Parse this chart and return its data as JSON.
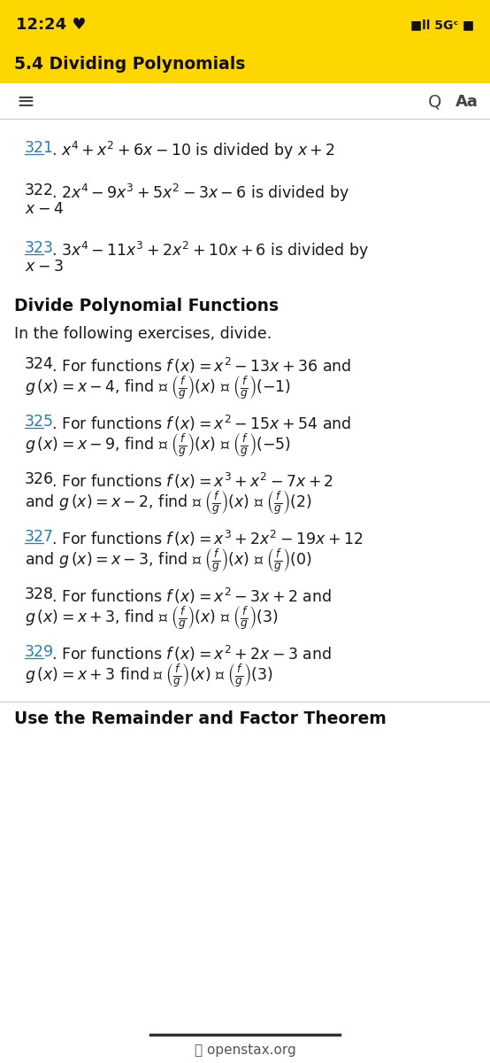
{
  "figsize": [
    5.54,
    12.0
  ],
  "dpi": 100,
  "yellow_bg": "#FFD700",
  "white_bg": "#FFFFFF",
  "text_color": "#1A1A1A",
  "link_color": "#2B7BB9",
  "separator_color": "#CCCCCC",
  "bold_header_color": "#111111",
  "status_time": "12:24 ♥",
  "status_signal": "■ll 5Gᶜ ■",
  "page_title": "5.4 Dividing Polynomials",
  "section1_header": "Divide Polynomial Functions",
  "section1_intro": "In the following exercises, divide.",
  "section2_header": "Use the Remainder and Factor Theorem",
  "footer": "openstax.org",
  "problems_321_323": [
    {
      "num": "321",
      "linked": true,
      "l1": ". $x^4 + x^2 + 6x - 10$ is divided by $x + 2$",
      "l2": null
    },
    {
      "num": "322",
      "linked": false,
      "l1": ". $2x^4 - 9x^3 + 5x^2 - 3x - 6$ is divided by",
      "l2": "$x - 4$"
    },
    {
      "num": "323",
      "linked": true,
      "l1": ". $3x^4 - 11x^3 + 2x^2 + 10x + 6$ is divided by",
      "l2": "$x - 3$"
    }
  ],
  "problems_324_329": [
    {
      "num": "324",
      "linked": false,
      "l1": ". For functions $f\\,(x) = x^2 - 13x + 36$ and",
      "l2": "$g\\,(x) = x - 4$, find Ⓐ $\\left(\\frac{f}{g}\\right)(x)$ Ⓑ $\\left(\\frac{f}{g}\\right)(-1)$"
    },
    {
      "num": "325",
      "linked": true,
      "l1": ". For functions $f\\,(x) = x^2 - 15x + 54$ and",
      "l2": "$g\\,(x) = x - 9$, find Ⓐ $\\left(\\frac{f}{g}\\right)(x)$ Ⓑ $\\left(\\frac{f}{g}\\right)(-5)$"
    },
    {
      "num": "326",
      "linked": false,
      "l1": ". For functions $f\\,(x) = x^3 + x^2 - 7x + 2$",
      "l2": "and $g\\,(x) = x - 2$, find Ⓐ $\\left(\\frac{f}{g}\\right)(x)$ Ⓑ $\\left(\\frac{f}{g}\\right)(2)$"
    },
    {
      "num": "327",
      "linked": true,
      "l1": ". For functions $f\\,(x) = x^3 + 2x^2 - 19x + 12$",
      "l2": "and $g\\,(x) = x - 3$, find Ⓐ $\\left(\\frac{f}{g}\\right)(x)$ Ⓑ $\\left(\\frac{f}{g}\\right)(0)$"
    },
    {
      "num": "328",
      "linked": false,
      "l1": ". For functions $f\\,(x) = x^2 - 3x + 2$ and",
      "l2": "$g\\,(x) = x + 3$, find Ⓐ $\\left(\\frac{f}{g}\\right)(x)$ Ⓑ $\\left(\\frac{f}{g}\\right)(3)$"
    },
    {
      "num": "329",
      "linked": true,
      "l1": ". For functions $f\\,(x) = x^2 + 2x - 3$ and",
      "l2": "$g\\,(x) = x + 3$ find Ⓐ $\\left(\\frac{f}{g}\\right)(x)$ Ⓑ $\\left(\\frac{f}{g}\\right)(3)$"
    }
  ]
}
